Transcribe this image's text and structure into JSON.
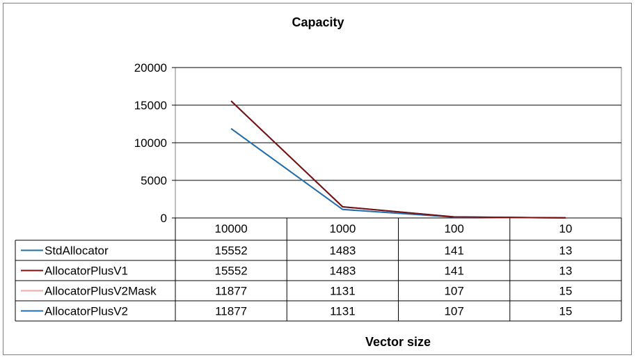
{
  "chart_data": {
    "type": "line",
    "title": "Capacity",
    "xlabel": "Vector size",
    "ylabel": "",
    "categories": [
      "10000",
      "1000",
      "100",
      "10"
    ],
    "ylim": [
      0,
      20000
    ],
    "yticks": [
      "0",
      "5000",
      "10000",
      "15000",
      "20000"
    ],
    "grid": true,
    "legend": "data-table",
    "series": [
      {
        "name": "StdAllocator",
        "values": [
          15552,
          1483,
          141,
          13
        ],
        "color": "#1f6fae"
      },
      {
        "name": "AllocatorPlusV1",
        "values": [
          15552,
          1483,
          141,
          13
        ],
        "color": "#7b1010"
      },
      {
        "name": "AllocatorPlusV2Mask",
        "values": [
          11877,
          1131,
          107,
          15
        ],
        "color": "#f4a6a6"
      },
      {
        "name": "AllocatorPlusV2",
        "values": [
          11877,
          1131,
          107,
          15
        ],
        "color": "#1f6fae"
      }
    ]
  }
}
